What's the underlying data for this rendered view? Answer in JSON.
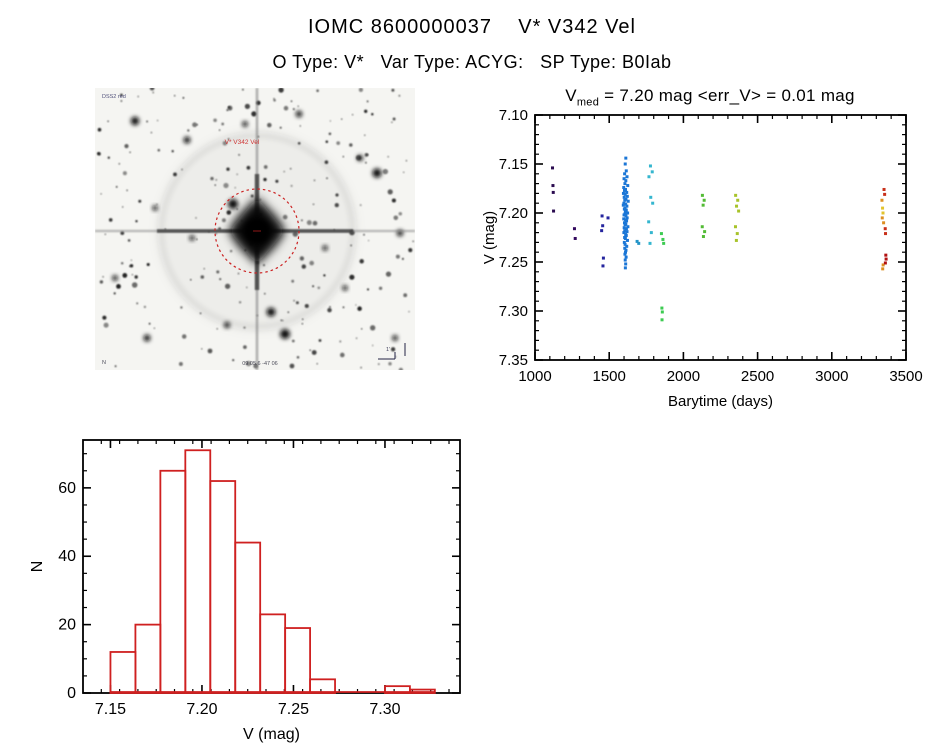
{
  "page": {
    "title": "IOMC 8600000037    V* V342 Vel",
    "subtitle": "O Type: V*   Var Type: ACYG:   SP Type: B0Iab"
  },
  "dss": {
    "target_label": "V* V342 Vel",
    "corner_top_left": "DSS2 red",
    "corner_bottom_left": "N",
    "corner_bottom": "09 05.6 -47 06",
    "scale_label": "1'",
    "circle_color": "#cc2222"
  },
  "chart_data": [
    {
      "type": "scatter",
      "title_v": "V",
      "title_sub": "med",
      "title_rest": " = 7.20 mag <err_V> = 0.01 mag",
      "xlabel": "Barytime (days)",
      "ylabel": "V (mag)",
      "xlim": [
        1000,
        3500
      ],
      "ylim": [
        7.1,
        7.35
      ],
      "y_axis_reversed_note": "magnitude axis increases downward",
      "xticks": [
        1000,
        1500,
        2000,
        2500,
        3000,
        3500
      ],
      "yticks": [
        7.1,
        7.15,
        7.2,
        7.25,
        7.3,
        7.35
      ],
      "x_minor_step": 100,
      "y_minor_step": 0.01,
      "grid": false,
      "series": [
        {
          "name": "epoch-1120",
          "color": "#2b0b50",
          "points": [
            [
              1118,
              7.154
            ],
            [
              1121,
              7.172
            ],
            [
              1123,
              7.179
            ],
            [
              1125,
              7.198
            ]
          ]
        },
        {
          "name": "epoch-1270",
          "color": "#33095e",
          "points": [
            [
              1266,
              7.216
            ],
            [
              1271,
              7.226
            ]
          ]
        },
        {
          "name": "epoch-1460",
          "color": "#25259e",
          "points": [
            [
              1452,
              7.203
            ],
            [
              1456,
              7.213
            ],
            [
              1449,
              7.218
            ],
            [
              1461,
              7.246
            ],
            [
              1458,
              7.254
            ],
            [
              1492,
              7.205
            ]
          ]
        },
        {
          "name": "epoch-1600",
          "color": "#1b76d6",
          "points": [
            [
              1608,
              7.15
            ],
            [
              1615,
              7.157
            ],
            [
              1604,
              7.16
            ],
            [
              1620,
              7.163
            ],
            [
              1600,
              7.165
            ],
            [
              1612,
              7.167
            ],
            [
              1606,
              7.17
            ],
            [
              1625,
              7.172
            ],
            [
              1598,
              7.174
            ],
            [
              1610,
              7.176
            ],
            [
              1603,
              7.177
            ],
            [
              1618,
              7.179
            ],
            [
              1596,
              7.18
            ],
            [
              1608,
              7.181
            ],
            [
              1622,
              7.183
            ],
            [
              1601,
              7.184
            ],
            [
              1613,
              7.186
            ],
            [
              1605,
              7.187
            ],
            [
              1628,
              7.188
            ],
            [
              1599,
              7.19
            ],
            [
              1611,
              7.191
            ],
            [
              1595,
              7.192
            ],
            [
              1619,
              7.193
            ],
            [
              1607,
              7.195
            ],
            [
              1602,
              7.196
            ],
            [
              1615,
              7.197
            ],
            [
              1609,
              7.198
            ],
            [
              1624,
              7.2
            ],
            [
              1606,
              7.201
            ],
            [
              1600,
              7.202
            ],
            [
              1613,
              7.203
            ],
            [
              1621,
              7.205
            ],
            [
              1598,
              7.206
            ],
            [
              1610,
              7.207
            ],
            [
              1617,
              7.208
            ],
            [
              1603,
              7.21
            ],
            [
              1612,
              7.211
            ],
            [
              1607,
              7.212
            ],
            [
              1626,
              7.214
            ],
            [
              1601,
              7.215
            ],
            [
              1616,
              7.216
            ],
            [
              1605,
              7.218
            ],
            [
              1620,
              7.219
            ],
            [
              1599,
              7.22
            ],
            [
              1611,
              7.222
            ],
            [
              1615,
              7.223
            ],
            [
              1604,
              7.225
            ],
            [
              1609,
              7.226
            ],
            [
              1623,
              7.228
            ],
            [
              1602,
              7.23
            ],
            [
              1607,
              7.232
            ],
            [
              1618,
              7.234
            ],
            [
              1605,
              7.236
            ],
            [
              1613,
              7.238
            ],
            [
              1610,
              7.24
            ],
            [
              1606,
              7.242
            ],
            [
              1614,
              7.245
            ],
            [
              1608,
              7.248
            ],
            [
              1611,
              7.252
            ],
            [
              1609,
              7.256
            ],
            [
              1612,
              7.144
            ]
          ]
        },
        {
          "name": "epoch-1690",
          "color": "#2394c8",
          "points": [
            [
              1688,
              7.229
            ],
            [
              1699,
              7.231
            ]
          ]
        },
        {
          "name": "epoch-1780",
          "color": "#35b6cf",
          "points": [
            [
              1778,
              7.152
            ],
            [
              1790,
              7.158
            ],
            [
              1768,
              7.163
            ],
            [
              1780,
              7.184
            ],
            [
              1793,
              7.19
            ],
            [
              1766,
              7.209
            ],
            [
              1784,
              7.22
            ],
            [
              1775,
              7.231
            ]
          ]
        },
        {
          "name": "epoch-1860",
          "color": "#3dcb52",
          "points": [
            [
              1852,
              7.221
            ],
            [
              1862,
              7.227
            ],
            [
              1867,
              7.231
            ],
            [
              1855,
              7.297
            ],
            [
              1858,
              7.301
            ],
            [
              1856,
              7.309
            ]
          ]
        },
        {
          "name": "epoch-2130",
          "color": "#53bb35",
          "points": [
            [
              2128,
              7.182
            ],
            [
              2140,
              7.187
            ],
            [
              2133,
              7.192
            ],
            [
              2127,
              7.214
            ],
            [
              2143,
              7.219
            ],
            [
              2135,
              7.224
            ]
          ]
        },
        {
          "name": "epoch-2360",
          "color": "#a8c32a",
          "points": [
            [
              2352,
              7.182
            ],
            [
              2366,
              7.187
            ],
            [
              2358,
              7.193
            ],
            [
              2372,
              7.198
            ],
            [
              2351,
              7.214
            ],
            [
              2363,
              7.221
            ],
            [
              2357,
              7.228
            ]
          ]
        },
        {
          "name": "epoch-3350-red",
          "color": "#c8301a",
          "points": [
            [
              3352,
              7.176
            ],
            [
              3356,
              7.181
            ],
            [
              3360,
              7.216
            ],
            [
              3362,
              7.221
            ]
          ]
        },
        {
          "name": "epoch-3350-orange",
          "color": "#dd8f22",
          "points": [
            [
              3338,
              7.187
            ],
            [
              3340,
              7.205
            ],
            [
              3349,
              7.21
            ],
            [
              3346,
              7.253
            ],
            [
              3343,
              7.257
            ]
          ]
        },
        {
          "name": "epoch-3350-yellow",
          "color": "#e2c32c",
          "points": [
            [
              3342,
              7.195
            ],
            [
              3345,
              7.2
            ]
          ]
        },
        {
          "name": "epoch-3350-darkred",
          "color": "#b21111",
          "points": [
            [
              3364,
              7.243
            ],
            [
              3366,
              7.247
            ],
            [
              3361,
              7.251
            ]
          ]
        }
      ]
    },
    {
      "type": "histogram",
      "xlabel": "V (mag)",
      "ylabel": "N",
      "bar_color": "#cf2020",
      "xlim": [
        7.135,
        7.341
      ],
      "ylim": [
        0,
        74
      ],
      "xticks": [
        7.15,
        7.2,
        7.25,
        7.3
      ],
      "yticks": [
        0,
        20,
        40,
        60
      ],
      "x_minor_step": 0.01,
      "y_minor_step": 5,
      "bin_start": 7.15,
      "bin_width": 0.013636,
      "counts": [
        12,
        20,
        65,
        71,
        62,
        44,
        23,
        19,
        4,
        0,
        0,
        2,
        1
      ],
      "total_points": 323
    }
  ]
}
